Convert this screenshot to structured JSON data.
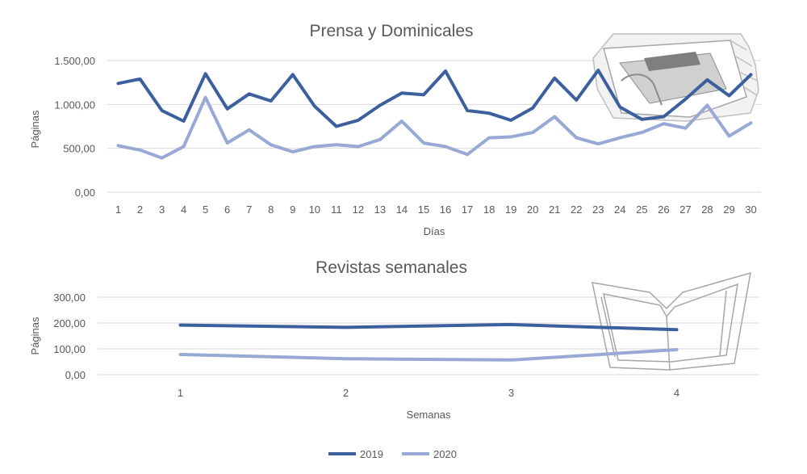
{
  "colors": {
    "s2019": "#3c5f9e",
    "s2020": "#98a9d6",
    "grid": "#d9d9d9",
    "text": "#595959"
  },
  "legend": {
    "items": [
      "2019",
      "2020"
    ],
    "position": "bottom"
  },
  "chart_data": [
    {
      "type": "line",
      "title": "Prensa y Dominicales",
      "xlabel": "Días",
      "ylabel": "Páginas",
      "ylim": [
        0,
        1500
      ],
      "yticks": [
        "0,00",
        "500,00",
        "1.000,00",
        "1.500,00"
      ],
      "grid": true,
      "categories": [
        "1",
        "2",
        "3",
        "4",
        "5",
        "6",
        "7",
        "8",
        "9",
        "10",
        "11",
        "12",
        "13",
        "14",
        "15",
        "16",
        "17",
        "18",
        "19",
        "20",
        "21",
        "22",
        "23",
        "24",
        "25",
        "26",
        "27",
        "28",
        "29",
        "30"
      ],
      "series": [
        {
          "name": "2019",
          "values": [
            1240,
            1290,
            930,
            810,
            1350,
            950,
            1120,
            1040,
            1340,
            980,
            750,
            820,
            990,
            1130,
            1110,
            1380,
            930,
            900,
            820,
            960,
            1300,
            1050,
            1390,
            970,
            830,
            860,
            1060,
            1280,
            1100,
            1340
          ]
        },
        {
          "name": "2020",
          "values": [
            530,
            480,
            390,
            520,
            1080,
            560,
            710,
            540,
            460,
            520,
            540,
            520,
            600,
            810,
            560,
            520,
            430,
            620,
            630,
            680,
            860,
            620,
            550,
            620,
            680,
            780,
            730,
            990,
            640,
            790
          ]
        }
      ]
    },
    {
      "type": "line",
      "title": "Revistas semanales",
      "xlabel": "Semanas",
      "ylabel": "Páginas",
      "ylim": [
        0,
        300
      ],
      "yticks": [
        "0,00",
        "100,00",
        "200,00",
        "300,00"
      ],
      "grid": true,
      "categories": [
        "1",
        "2",
        "3",
        "4"
      ],
      "series": [
        {
          "name": "2019",
          "values": [
            192,
            183,
            194,
            174
          ]
        },
        {
          "name": "2020",
          "values": [
            78,
            62,
            57,
            97
          ]
        }
      ]
    }
  ],
  "decorations": {
    "chart1_icon": "newspaper-icon",
    "chart2_icon": "open-magazine-icon"
  }
}
